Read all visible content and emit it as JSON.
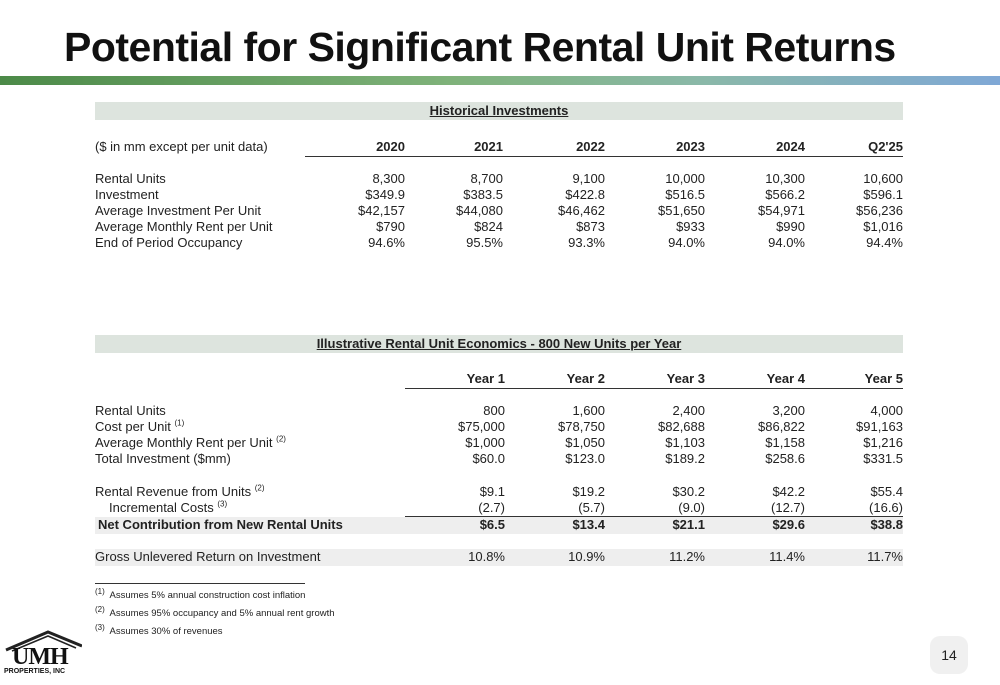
{
  "title": "Potential for Significant Rental Unit Returns",
  "historical": {
    "heading": "Historical Investments",
    "label_header": "($ in mm except per unit data)",
    "columns": [
      "2020",
      "2021",
      "2022",
      "2023",
      "2024",
      "Q2'25"
    ],
    "rows": [
      {
        "label": "Rental Units",
        "values": [
          "8,300",
          "8,700",
          "9,100",
          "10,000",
          "10,300",
          "10,600"
        ]
      },
      {
        "label": "Investment",
        "values": [
          "$349.9",
          "$383.5",
          "$422.8",
          "$516.5",
          "$566.2",
          "$596.1"
        ]
      },
      {
        "label": "Average Investment Per Unit",
        "values": [
          "$42,157",
          "$44,080",
          "$46,462",
          "$51,650",
          "$54,971",
          "$56,236"
        ]
      },
      {
        "label": "Average Monthly Rent per Unit",
        "values": [
          "$790",
          "$824",
          "$873",
          "$933",
          "$990",
          "$1,016"
        ]
      },
      {
        "label": "End of Period Occupancy",
        "values": [
          "94.6%",
          "95.5%",
          "93.3%",
          "94.0%",
          "94.0%",
          "94.4%"
        ]
      }
    ]
  },
  "illustrative": {
    "heading": "Illustrative Rental Unit Economics - 800 New Units per Year",
    "columns": [
      "Year 1",
      "Year 2",
      "Year 3",
      "Year 4",
      "Year 5"
    ],
    "rows": [
      {
        "label": "Rental Units",
        "sup": "",
        "values": [
          "800",
          "1,600",
          "2,400",
          "3,200",
          "4,000"
        ]
      },
      {
        "label": "Cost per Unit",
        "sup": "(1)",
        "values": [
          "$75,000",
          "$78,750",
          "$82,688",
          "$86,822",
          "$91,163"
        ]
      },
      {
        "label": "Average Monthly Rent per Unit",
        "sup": "(2)",
        "values": [
          "$1,000",
          "$1,050",
          "$1,103",
          "$1,158",
          "$1,216"
        ]
      },
      {
        "label": "Total Investment ($mm)",
        "sup": "",
        "values": [
          "$60.0",
          "$123.0",
          "$189.2",
          "$258.6",
          "$331.5"
        ]
      },
      {
        "label": "Rental Revenue from Units",
        "sup": "(2)",
        "values": [
          "$9.1",
          "$19.2",
          "$30.2",
          "$42.2",
          "$55.4"
        ]
      },
      {
        "label": "Incremental Costs",
        "sup": "(3)",
        "values": [
          "(2.7)",
          "(5.7)",
          "(9.0)",
          "(12.7)",
          "(16.6)"
        ]
      },
      {
        "label": "Net Contribution from New Rental Units",
        "sup": "",
        "values": [
          "$6.5",
          "$13.4",
          "$21.1",
          "$29.6",
          "$38.8"
        ]
      },
      {
        "label": "Gross Unlevered Return on Investment",
        "sup": "",
        "values": [
          "10.8%",
          "10.9%",
          "11.2%",
          "11.4%",
          "11.7%"
        ]
      }
    ]
  },
  "footnotes": [
    {
      "marker": "(1)",
      "text": "Assumes 5% annual construction cost inflation"
    },
    {
      "marker": "(2)",
      "text": "Assumes 95% occupancy and 5% annual rent growth"
    },
    {
      "marker": "(3)",
      "text": "Assumes 30% of revenues"
    }
  ],
  "logo": {
    "line1": "UMH",
    "line2": "PROPERTIES, INC"
  },
  "page_number": "14"
}
